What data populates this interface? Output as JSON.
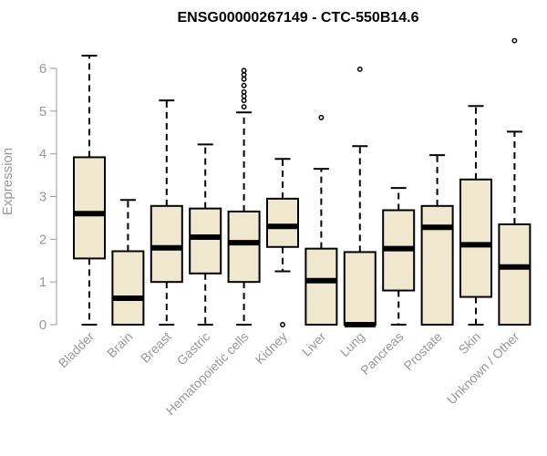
{
  "chart_data": {
    "type": "boxplot",
    "title": "ENSG00000267149 - CTC-550B14.6",
    "xlabel": "",
    "ylabel": "Expression",
    "ylim": [
      0,
      6.7
    ],
    "yticks": [
      0,
      1,
      2,
      3,
      4,
      5,
      6
    ],
    "grid": false,
    "legend": "none",
    "colors": {
      "box_fill": "#efe8cf",
      "box_stroke": "#000000",
      "axis": "#999999"
    },
    "categories": [
      "Bladder",
      "Brain",
      "Breast",
      "Gastric",
      "Hematopoietic cells",
      "Kidney",
      "Liver",
      "Lung",
      "Pancreas",
      "Prostate",
      "Skin",
      "Unknown / Other"
    ],
    "boxes": [
      {
        "min": 0,
        "q1": 1.55,
        "median": 2.6,
        "q3": 3.92,
        "max": 6.3,
        "outliers": []
      },
      {
        "min": 0,
        "q1": 0,
        "median": 0.62,
        "q3": 1.72,
        "max": 2.92,
        "outliers": []
      },
      {
        "min": 0,
        "q1": 1.0,
        "median": 1.8,
        "q3": 2.78,
        "max": 5.25,
        "outliers": []
      },
      {
        "min": 0,
        "q1": 1.2,
        "median": 2.05,
        "q3": 2.72,
        "max": 4.22,
        "outliers": []
      },
      {
        "min": 0,
        "q1": 1.0,
        "median": 1.92,
        "q3": 2.65,
        "max": 4.97,
        "outliers": [
          5.1,
          5.25,
          5.35,
          5.45,
          5.6,
          5.75,
          5.85,
          5.95
        ]
      },
      {
        "min": 1.25,
        "q1": 1.82,
        "median": 2.3,
        "q3": 2.95,
        "max": 3.88,
        "outliers": [
          0
        ]
      },
      {
        "min": 0,
        "q1": 0,
        "median": 1.03,
        "q3": 1.78,
        "max": 3.65,
        "outliers": [
          4.85
        ]
      },
      {
        "min": 0,
        "q1": 0,
        "median": 0,
        "q3": 1.7,
        "max": 4.18,
        "outliers": [
          5.98
        ]
      },
      {
        "min": 0,
        "q1": 0.8,
        "median": 1.78,
        "q3": 2.68,
        "max": 3.2,
        "outliers": []
      },
      {
        "min": 0,
        "q1": 0,
        "median": 2.28,
        "q3": 2.78,
        "max": 3.97,
        "outliers": []
      },
      {
        "min": 0,
        "q1": 0.65,
        "median": 1.87,
        "q3": 3.4,
        "max": 5.12,
        "outliers": []
      },
      {
        "min": 0,
        "q1": 0,
        "median": 1.35,
        "q3": 2.35,
        "max": 4.52,
        "outliers": [
          6.65
        ]
      }
    ]
  }
}
